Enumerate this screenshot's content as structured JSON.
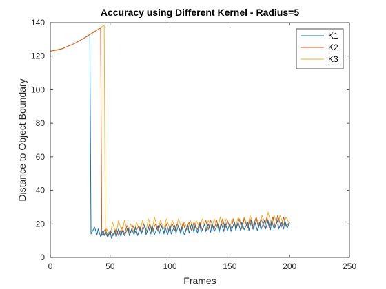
{
  "chart_data": {
    "type": "line",
    "title": "Accuracy using Different Kernel - Radius=5",
    "xlabel": "Frames",
    "ylabel": "Distance to Object Boundary",
    "xlim": [
      0,
      250
    ],
    "ylim": [
      0,
      140
    ],
    "xticks": [
      0,
      50,
      100,
      150,
      200,
      250
    ],
    "yticks": [
      0,
      20,
      40,
      60,
      80,
      100,
      120,
      140
    ],
    "grid": false,
    "legend_position": "top-right",
    "series": [
      {
        "name": "K1",
        "color": "#0072BD",
        "x": [
          33,
          34,
          37,
          39,
          40,
          42,
          44,
          45,
          46,
          48,
          50,
          51,
          54,
          55,
          57,
          59,
          60,
          62,
          65,
          66,
          68,
          70,
          71,
          73,
          75,
          76,
          79,
          80,
          82,
          84,
          85,
          87,
          90,
          91,
          93,
          95,
          96,
          98,
          100,
          101,
          104,
          105,
          107,
          109,
          110,
          112,
          115,
          116,
          118,
          120,
          121,
          123,
          125,
          126,
          129,
          130,
          132,
          134,
          135,
          137,
          140,
          141,
          143,
          145,
          146,
          148,
          150,
          151,
          154,
          155,
          157,
          159,
          160,
          162,
          165,
          166,
          168,
          170,
          171,
          173,
          175,
          176,
          179,
          180,
          182,
          184,
          185,
          187,
          190,
          191,
          193,
          195,
          196,
          198,
          200
        ],
        "y": [
          132,
          14,
          18,
          13.5,
          17,
          12.5,
          16,
          13,
          15,
          12,
          16,
          11.5,
          16,
          12,
          17,
          12.5,
          16,
          13,
          18,
          13,
          17,
          13.5,
          18,
          13,
          18,
          14,
          19,
          13.5,
          18,
          14,
          19,
          13.5,
          19,
          14,
          19,
          14,
          18,
          13.5,
          19,
          14,
          19,
          14.5,
          19,
          14,
          18,
          13.5,
          19,
          14.5,
          20,
          15,
          19,
          14.5,
          20,
          15,
          20,
          15.5,
          20,
          15,
          20,
          15.5,
          20,
          15,
          20,
          15.5,
          21,
          16,
          20,
          15.5,
          21,
          16,
          21,
          16,
          21,
          16.5,
          21,
          16,
          22,
          16.5,
          21,
          16,
          21,
          16.5,
          22,
          17,
          22,
          16.5,
          22,
          17,
          22,
          17,
          21,
          17,
          22,
          17.5,
          21
        ]
      },
      {
        "name": "K2",
        "color": "#D95319",
        "x": [
          0,
          10,
          20,
          30,
          40,
          42,
          43,
          46,
          48,
          50,
          53,
          55,
          57,
          60,
          62,
          64,
          67,
          69,
          71,
          74,
          76,
          78,
          81,
          83,
          85,
          88,
          90,
          92,
          95,
          97,
          99,
          102,
          104,
          106,
          109,
          111,
          113,
          116,
          118,
          120,
          123,
          125,
          127,
          130,
          132,
          134,
          137,
          139,
          141,
          144,
          146,
          148,
          151,
          153,
          155,
          158,
          160,
          162,
          165,
          167,
          169,
          172,
          174,
          176,
          179,
          181,
          183,
          186,
          188,
          190,
          193,
          195,
          197,
          200
        ],
        "y": [
          123,
          124.5,
          127.5,
          131.5,
          136,
          137,
          13,
          17,
          12.5,
          16,
          13,
          17,
          13,
          18,
          14,
          19,
          14.5,
          19,
          15,
          19,
          14.5,
          20,
          15,
          20,
          15,
          20,
          15.5,
          20,
          15,
          20,
          15.5,
          20,
          16,
          20,
          15.5,
          21,
          16,
          21,
          16,
          21,
          16.5,
          21,
          16,
          22,
          16.5,
          22,
          17,
          22,
          16.5,
          23,
          17,
          22,
          17,
          23,
          17.5,
          23,
          17,
          23,
          17.5,
          23,
          17,
          24,
          17.5,
          23,
          18,
          24,
          17.5,
          24,
          18,
          25,
          18,
          24,
          18.5,
          21
        ]
      },
      {
        "name": "K3",
        "color": "#EDB120",
        "x": [
          0,
          5,
          10,
          15,
          20,
          25,
          30,
          35,
          40,
          45,
          46,
          47,
          50,
          52,
          55,
          57,
          60,
          62,
          65,
          67,
          70,
          72,
          75,
          77,
          80,
          82,
          85,
          87,
          90,
          92,
          95,
          97,
          100,
          102,
          105,
          107,
          110,
          112,
          115,
          117,
          120,
          122,
          125,
          127,
          130,
          132,
          135,
          137,
          140,
          142,
          145,
          147,
          150,
          152,
          155,
          157,
          160,
          162,
          165,
          167,
          170,
          172,
          175,
          177,
          180,
          182,
          185,
          187,
          190,
          192,
          195,
          197,
          200
        ],
        "y": [
          123,
          123.5,
          124.5,
          126,
          127.5,
          129.5,
          131.5,
          134,
          136,
          138.5,
          14,
          17,
          13,
          21,
          14,
          22,
          15,
          22,
          14.5,
          20,
          15,
          21,
          15.5,
          22,
          16,
          23,
          16,
          24,
          16.5,
          22,
          17,
          23,
          17,
          22,
          16.5,
          23,
          17,
          21,
          16.5,
          22,
          17,
          22,
          17.5,
          23,
          17,
          22,
          18,
          23,
          17.5,
          24,
          18,
          23,
          18,
          23,
          18.5,
          24,
          18,
          24,
          18.5,
          25,
          19,
          24,
          19,
          25,
          19.5,
          27,
          19,
          25,
          19,
          25,
          19.5,
          24,
          20
        ]
      }
    ]
  }
}
